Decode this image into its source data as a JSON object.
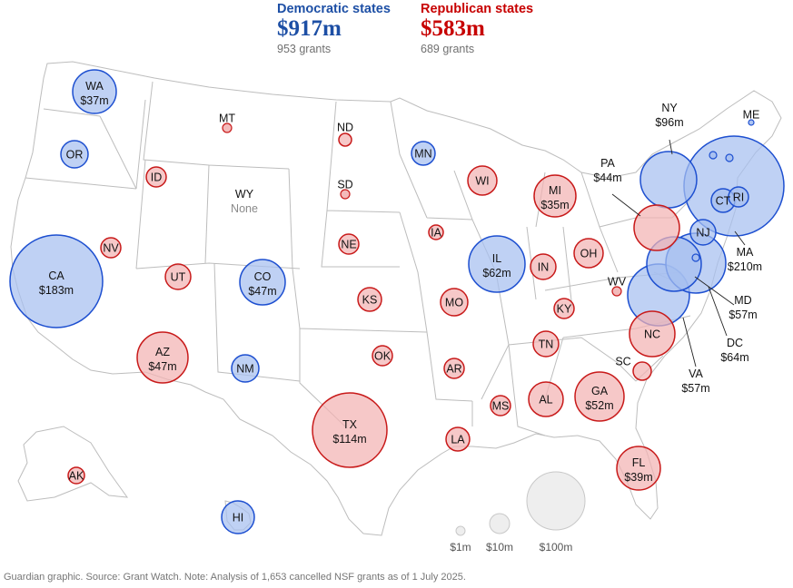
{
  "colors": {
    "dem_fill": "#a6bff0",
    "dem_stroke": "#1d4fd0",
    "rep_fill": "#f2b3b3",
    "rep_stroke": "#c81a1a",
    "none_fill": "#eeeeee",
    "border": "#bdbdbd"
  },
  "header": {
    "dem": {
      "title": "Democratic states",
      "amount": "$917m",
      "grants": "953 grants"
    },
    "rep": {
      "title": "Republican states",
      "amount": "$583m",
      "grants": "689 grants"
    }
  },
  "states": [
    {
      "code": "WA",
      "party": "dem",
      "value_m": 37,
      "label": "WA",
      "amount": "$37m"
    },
    {
      "code": "OR",
      "party": "dem",
      "label": "OR"
    },
    {
      "code": "CA",
      "party": "dem",
      "value_m": 183,
      "label": "CA",
      "amount": "$183m"
    },
    {
      "code": "NV",
      "party": "rep",
      "label": "NV"
    },
    {
      "code": "ID",
      "party": "rep",
      "label": "ID"
    },
    {
      "code": "MT",
      "party": "rep",
      "label": "MT"
    },
    {
      "code": "WY",
      "party": "none",
      "label": "WY",
      "amount": "None"
    },
    {
      "code": "UT",
      "party": "rep",
      "label": "UT"
    },
    {
      "code": "CO",
      "party": "dem",
      "value_m": 47,
      "label": "CO",
      "amount": "$47m"
    },
    {
      "code": "AZ",
      "party": "rep",
      "value_m": 47,
      "label": "AZ",
      "amount": "$47m"
    },
    {
      "code": "NM",
      "party": "dem",
      "label": "NM"
    },
    {
      "code": "ND",
      "party": "rep",
      "label": "ND"
    },
    {
      "code": "SD",
      "party": "rep",
      "label": "SD"
    },
    {
      "code": "NE",
      "party": "rep",
      "label": "NE"
    },
    {
      "code": "KS",
      "party": "rep",
      "label": "KS"
    },
    {
      "code": "OK",
      "party": "rep",
      "label": "OK"
    },
    {
      "code": "TX",
      "party": "rep",
      "value_m": 114,
      "label": "TX",
      "amount": "$114m"
    },
    {
      "code": "MN",
      "party": "dem",
      "label": "MN"
    },
    {
      "code": "IA",
      "party": "rep",
      "label": "IA"
    },
    {
      "code": "MO",
      "party": "rep",
      "label": "MO"
    },
    {
      "code": "AR",
      "party": "rep",
      "label": "AR"
    },
    {
      "code": "LA",
      "party": "rep",
      "label": "LA"
    },
    {
      "code": "WI",
      "party": "rep",
      "label": "WI"
    },
    {
      "code": "IL",
      "party": "dem",
      "value_m": 62,
      "label": "IL",
      "amount": "$62m"
    },
    {
      "code": "MS",
      "party": "rep",
      "label": "MS"
    },
    {
      "code": "MI",
      "party": "rep",
      "value_m": 35,
      "label": "MI",
      "amount": "$35m"
    },
    {
      "code": "IN",
      "party": "rep",
      "label": "IN"
    },
    {
      "code": "KY",
      "party": "rep",
      "label": "KY"
    },
    {
      "code": "TN",
      "party": "rep",
      "label": "TN"
    },
    {
      "code": "AL",
      "party": "rep",
      "label": "AL"
    },
    {
      "code": "OH",
      "party": "rep",
      "label": "OH"
    },
    {
      "code": "WV",
      "party": "rep",
      "label": "WV"
    },
    {
      "code": "GA",
      "party": "rep",
      "value_m": 52,
      "label": "GA",
      "amount": "$52m"
    },
    {
      "code": "FL",
      "party": "rep",
      "value_m": 39,
      "label": "FL",
      "amount": "$39m"
    },
    {
      "code": "SC",
      "party": "rep",
      "label": "SC"
    },
    {
      "code": "NC",
      "party": "rep",
      "label": "NC"
    },
    {
      "code": "VA",
      "party": "dem",
      "value_m": 57,
      "label": "VA",
      "amount": "$57m"
    },
    {
      "code": "PA",
      "party": "rep",
      "value_m": 44,
      "label": "PA",
      "amount": "$44m"
    },
    {
      "code": "NY",
      "party": "dem",
      "value_m": 96,
      "label": "NY",
      "amount": "$96m"
    },
    {
      "code": "NJ",
      "party": "dem",
      "label": "NJ"
    },
    {
      "code": "MD",
      "party": "dem",
      "value_m": 57,
      "label": "MD",
      "amount": "$57m"
    },
    {
      "code": "DC",
      "party": "dem",
      "value_m": 64,
      "label": "DC",
      "amount": "$64m"
    },
    {
      "code": "MA",
      "party": "dem",
      "value_m": 210,
      "label": "MA",
      "amount": "$210m"
    },
    {
      "code": "CT",
      "party": "dem",
      "label": "CT"
    },
    {
      "code": "RI",
      "party": "dem",
      "label": "RI"
    },
    {
      "code": "ME",
      "party": "dem",
      "label": "ME"
    },
    {
      "code": "NH",
      "party": "dem"
    },
    {
      "code": "VT",
      "party": "dem"
    },
    {
      "code": "DE",
      "party": "dem"
    },
    {
      "code": "AK",
      "party": "rep",
      "label": "AK"
    },
    {
      "code": "HI",
      "party": "dem",
      "label": "HI"
    }
  ],
  "legend": [
    {
      "value_m": 1,
      "label": "$1m"
    },
    {
      "value_m": 10,
      "label": "$10m"
    },
    {
      "value_m": 100,
      "label": "$100m"
    }
  ],
  "footer": "Guardian graphic. Source: Grant Watch. Note: Analysis of 1,653 cancelled NSF grants as of 1 July 2025."
}
